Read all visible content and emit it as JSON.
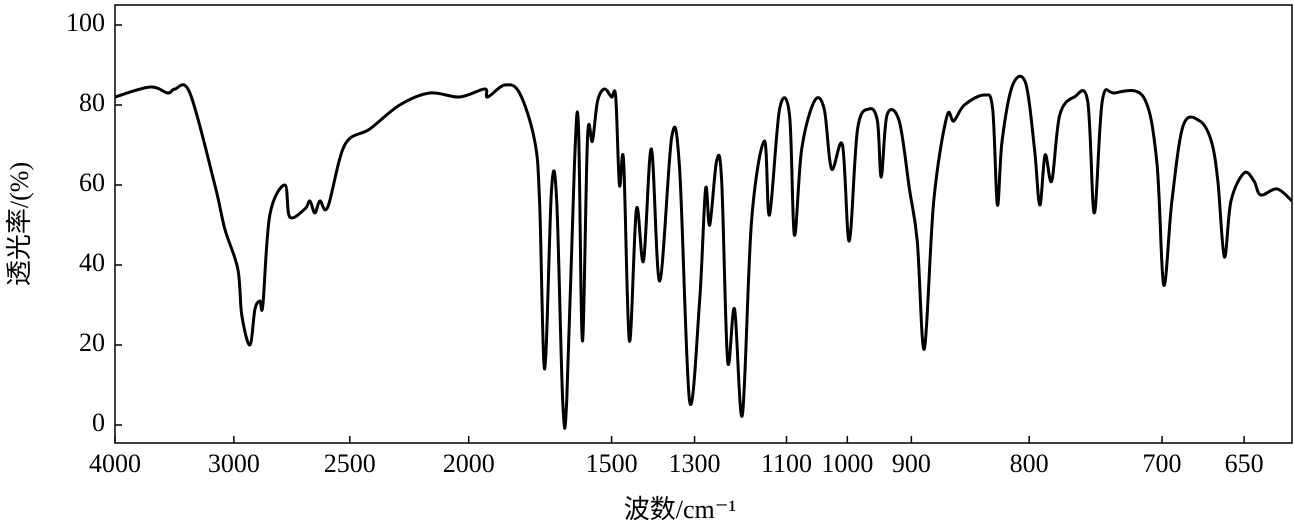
{
  "chart_data": {
    "type": "line",
    "xlabel": "波数/cm⁻¹",
    "ylabel": "透光率/(%)",
    "xlim": [
      4000,
      621
    ],
    "ylim": [
      -4.5,
      105
    ],
    "xticks": [
      4000,
      3000,
      2500,
      2000,
      1500,
      1300,
      1100,
      1000,
      900,
      800,
      700,
      650
    ],
    "yticks": [
      0,
      20,
      40,
      60,
      80,
      100
    ],
    "series": [
      {
        "color": "#000000",
        "x": [
          4000,
          3706,
          3555,
          3496,
          3370,
          3160,
          3076,
          2983,
          2966,
          2931,
          2909,
          2888,
          2875,
          2845,
          2780,
          2759,
          2694,
          2672,
          2651,
          2629,
          2595,
          2522,
          2416,
          2290,
          2164,
          2038,
          1944,
          1934,
          1874,
          1822,
          1769,
          1752,
          1734,
          1710,
          1692,
          1671,
          1657,
          1630,
          1616,
          1602,
          1584,
          1567,
          1549,
          1525,
          1500,
          1490,
          1481,
          1471,
          1457,
          1440,
          1423,
          1404,
          1384,
          1355,
          1336,
          1312,
          1289,
          1276,
          1267,
          1252,
          1241,
          1228,
          1213,
          1196,
          1176,
          1148,
          1137,
          1115,
          1095,
          1087,
          1075,
          1054,
          1038,
          1026,
          1008,
          997,
          984,
          966,
          953,
          947,
          938,
          919,
          903,
          895,
          889,
          881,
          870,
          864,
          855,
          838,
          831,
          827,
          823,
          814,
          803,
          796,
          792,
          788,
          783,
          777,
          766,
          756,
          751,
          745,
          736,
          714,
          704,
          699,
          694,
          687,
          677,
          670,
          666,
          662,
          658,
          650,
          644,
          640,
          630,
          621
        ],
        "values": [
          82,
          84.5,
          83,
          84,
          83,
          60,
          49,
          39,
          27.5,
          20,
          29,
          31,
          30,
          52.5,
          60,
          52,
          54,
          56,
          53,
          56,
          54.5,
          70,
          74,
          80,
          83,
          82,
          84,
          82,
          85,
          83,
          71,
          56,
          14,
          59,
          56,
          6,
          6,
          65,
          75,
          21,
          72,
          71,
          81,
          84,
          82,
          82,
          60,
          66,
          21,
          54,
          41,
          69,
          36,
          72,
          64,
          6,
          31,
          59,
          50,
          66,
          61,
          16,
          29,
          2.5,
          51,
          71,
          52.5,
          79,
          77.5,
          47.5,
          69,
          81,
          79,
          64,
          70,
          46,
          74,
          79,
          76,
          62,
          77.5,
          76,
          59,
          46,
          19,
          56,
          77,
          76,
          80,
          82.5,
          79,
          55,
          71,
          85,
          85.5,
          69,
          55,
          67.5,
          61,
          77.5,
          82,
          81,
          53,
          81,
          83,
          82,
          66,
          35,
          56,
          75,
          76,
          71,
          61,
          42,
          56,
          63,
          61,
          57.5,
          59,
          56
        ]
      }
    ]
  }
}
